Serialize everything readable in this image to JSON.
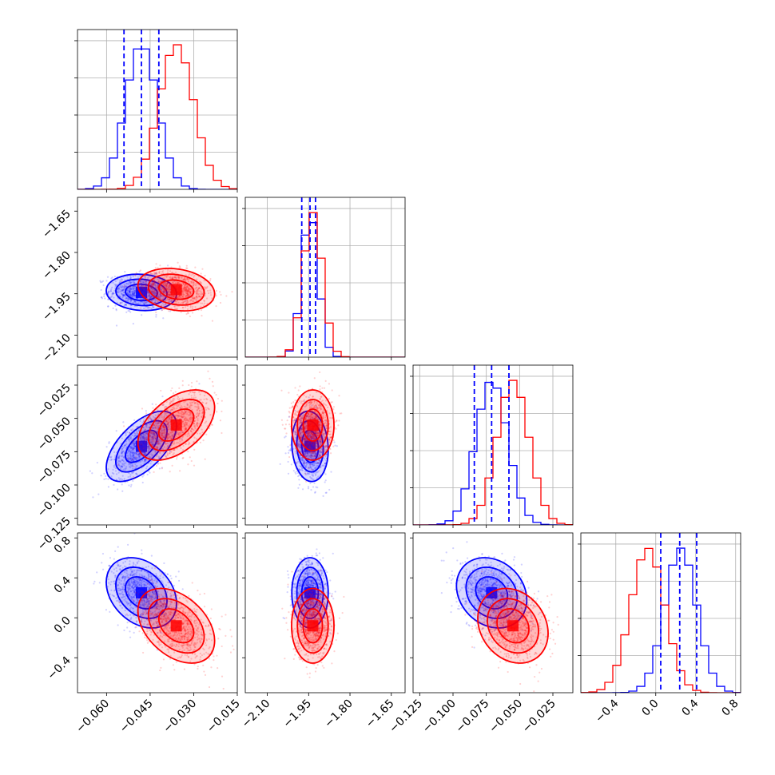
{
  "chart_data": {
    "type": "corner",
    "colors": {
      "series_a": "#0000ff",
      "series_b": "#ff0000",
      "grid": "#b0b0b0"
    },
    "parameters": [
      {
        "id": "p1",
        "range": [
          -0.07,
          -0.015
        ],
        "ticks": [
          -0.06,
          -0.045,
          -0.03,
          -0.015
        ],
        "tick_labels": [
          "−0.060",
          "−0.045",
          "−0.030",
          "−0.015"
        ]
      },
      {
        "id": "p2",
        "range": [
          -2.18,
          -1.6
        ],
        "ticks": [
          -2.1,
          -1.95,
          -1.8,
          -1.65
        ],
        "tick_labels": [
          "−2.10",
          "−1.95",
          "−1.80",
          "−1.65"
        ]
      },
      {
        "id": "p3",
        "range": [
          -0.13,
          -0.01
        ],
        "ticks": [
          -0.125,
          -0.1,
          -0.075,
          -0.05,
          -0.025
        ],
        "tick_labels": [
          "−0.125",
          "−0.100",
          "−0.075",
          "−0.050",
          "−0.025"
        ]
      },
      {
        "id": "p4",
        "range": [
          -0.75,
          0.85
        ],
        "ticks": [
          -0.4,
          0.0,
          0.4,
          0.8
        ],
        "tick_labels": [
          "−0.4",
          "0.0",
          "0.4",
          "0.8"
        ]
      }
    ],
    "y_tick_labels": {
      "p2": [
        "−1.65",
        "−1.80",
        "−1.95",
        "−2.10"
      ],
      "p3": [
        "−0.025",
        "−0.050",
        "−0.075",
        "−0.100",
        "−0.125"
      ],
      "p4": [
        "0.8",
        "0.4",
        "0.0",
        "−0.4"
      ]
    },
    "series": [
      {
        "key": "series_a",
        "color": "#0000ff",
        "mean": [
          -0.048,
          -1.945,
          -0.071,
          0.25
        ],
        "sd": [
          0.0055,
          0.03,
          0.012,
          0.16
        ],
        "quantile_lines": [
          [
            -0.054,
            -0.048,
            -0.042
          ],
          [
            -1.975,
            -1.945,
            -1.925
          ],
          [
            -0.084,
            -0.071,
            -0.058
          ],
          [
            0.05,
            0.24,
            0.41
          ]
        ]
      },
      {
        "key": "series_b",
        "color": "#ff0000",
        "mean": [
          -0.036,
          -1.935,
          -0.055,
          -0.08
        ],
        "sd": [
          0.006,
          0.035,
          0.012,
          0.17
        ]
      }
    ],
    "correlations": [
      {
        "pair": [
          "p1",
          "p2"
        ],
        "series_a": -0.1,
        "series_b": -0.2
      },
      {
        "pair": [
          "p1",
          "p3"
        ],
        "series_a": 0.6,
        "series_b": 0.5
      },
      {
        "pair": [
          "p1",
          "p4"
        ],
        "series_a": -0.3,
        "series_b": -0.4
      },
      {
        "pair": [
          "p2",
          "p3"
        ],
        "series_a": -0.1,
        "series_b": 0.0
      },
      {
        "pair": [
          "p2",
          "p4"
        ],
        "series_a": 0.0,
        "series_b": 0.0
      },
      {
        "pair": [
          "p3",
          "p4"
        ],
        "series_a": -0.2,
        "series_b": -0.2
      }
    ],
    "grid": true,
    "contour_levels_sigma": [
      1,
      1.6,
      2.2
    ],
    "histogram_bins": 20,
    "legend": "none",
    "title": "",
    "xlabel": "",
    "ylabel": ""
  }
}
